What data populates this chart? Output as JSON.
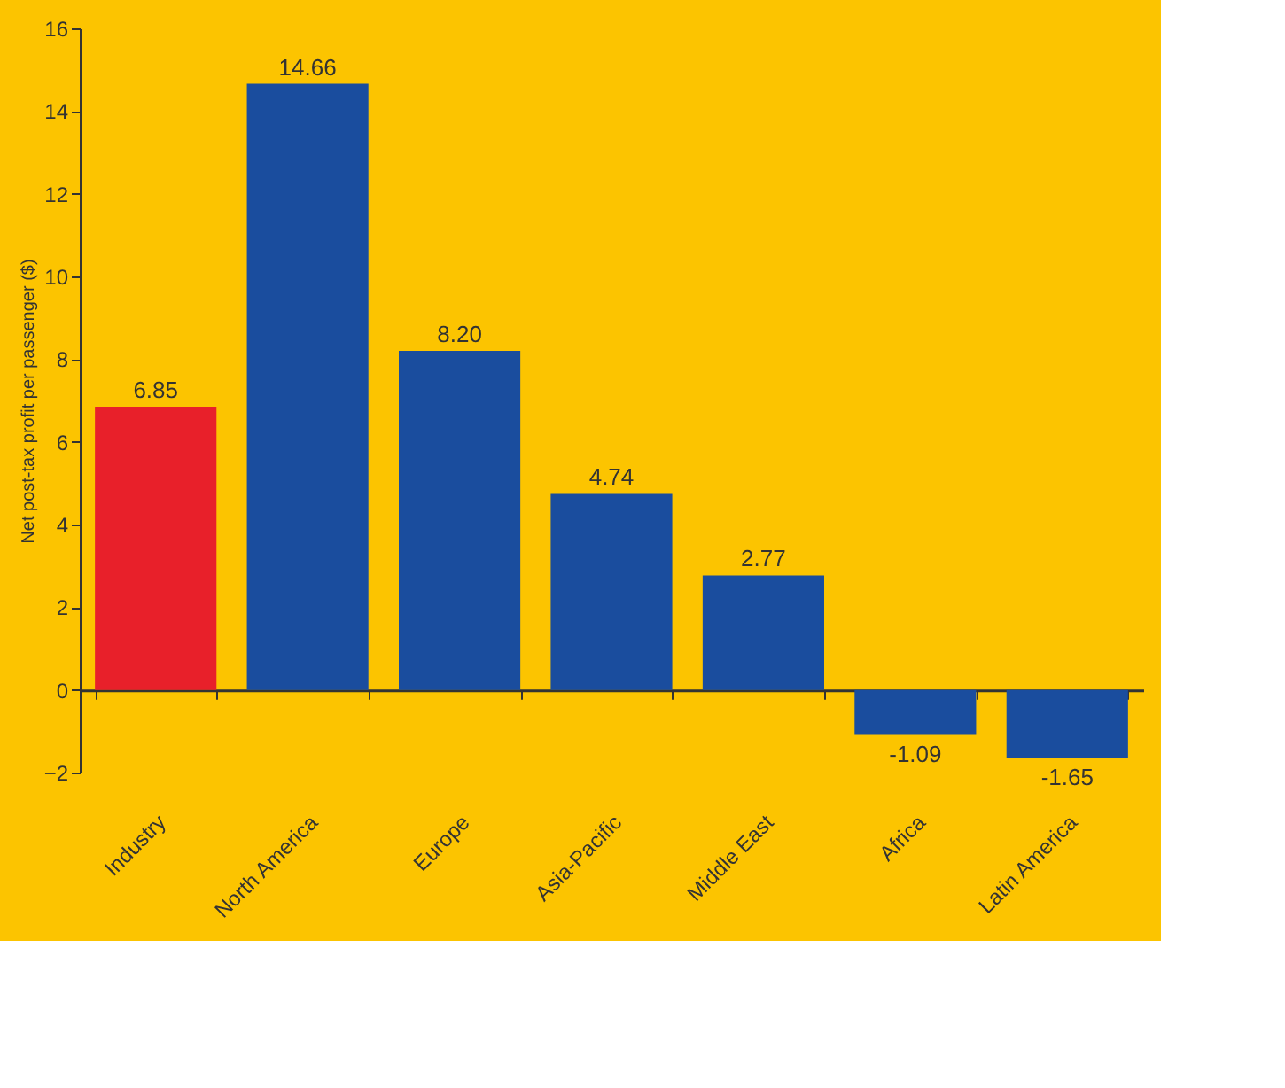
{
  "chart_data": {
    "type": "bar",
    "ylabel": "Net post-tax profit per passenger ($)",
    "categories": [
      "Industry",
      "North America",
      "Europe",
      "Asia-Pacific",
      "Middle East",
      "Africa",
      "Latin America"
    ],
    "values": [
      6.85,
      14.66,
      8.2,
      4.74,
      2.77,
      -1.09,
      -1.65
    ],
    "value_labels": [
      "6.85",
      "14.66",
      "8.20",
      "4.74",
      "2.77",
      "-1.09",
      "-1.65"
    ],
    "colors": [
      "#e8202a",
      "#1a4d9e",
      "#1a4d9e",
      "#1a4d9e",
      "#1a4d9e",
      "#1a4d9e",
      "#1a4d9e"
    ],
    "ylim": [
      -2,
      16
    ],
    "yticks": [
      -2,
      0,
      2,
      4,
      6,
      8,
      10,
      12,
      14,
      16
    ]
  }
}
